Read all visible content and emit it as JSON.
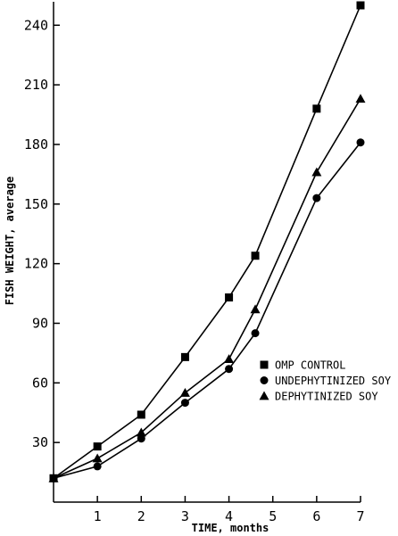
{
  "chart_data": {
    "type": "line",
    "title": "",
    "xlabel": "TIME, months",
    "ylabel": "FISH WEIGHT, average",
    "xlim": [
      0,
      7
    ],
    "ylim": [
      0,
      250
    ],
    "xticks": [
      1,
      2,
      3,
      4,
      5,
      6,
      7
    ],
    "yticks": [
      30,
      60,
      90,
      120,
      150,
      180,
      210,
      240
    ],
    "grid": false,
    "legend_position": "bottom-right",
    "series": [
      {
        "name": "OMP CONTROL",
        "marker": "square",
        "x": [
          0,
          1,
          2,
          3,
          4,
          4.6,
          6,
          7
        ],
        "y": [
          12,
          28,
          44,
          73,
          103,
          124,
          198,
          250
        ]
      },
      {
        "name": "UNDEPHYTINIZED SOY",
        "marker": "circle",
        "x": [
          0,
          1,
          2,
          3,
          4,
          4.6,
          6,
          7
        ],
        "y": [
          12,
          18,
          32,
          50,
          67,
          85,
          153,
          181
        ]
      },
      {
        "name": "DEPHYTINIZED SOY",
        "marker": "triangle",
        "x": [
          0,
          1,
          2,
          3,
          4,
          4.6,
          6,
          7
        ],
        "y": [
          12,
          22,
          35,
          55,
          72,
          97,
          166,
          203
        ]
      }
    ]
  }
}
